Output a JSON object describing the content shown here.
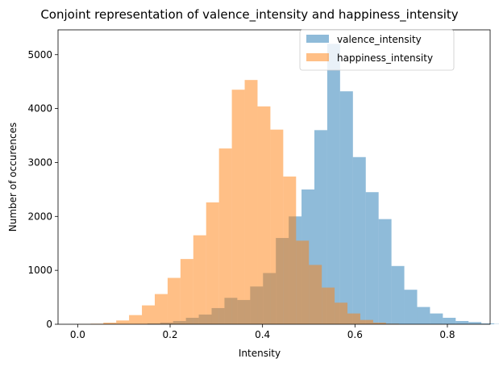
{
  "chart_data": {
    "type": "bar",
    "title": "Conjoint representation of valence_intensity and happiness_intensity",
    "xlabel": "Intensity",
    "ylabel": "Number of occurences",
    "xlim": [
      -0.0425,
      0.8925
    ],
    "ylim": [
      0,
      5460
    ],
    "xticks": [
      0.0,
      0.2,
      0.4,
      0.6,
      0.8
    ],
    "xtick_labels": [
      "0.0",
      "0.2",
      "0.4",
      "0.6",
      "0.8"
    ],
    "yticks": [
      0,
      1000,
      2000,
      3000,
      4000,
      5000
    ],
    "ytick_labels": [
      "0",
      "1000",
      "2000",
      "3000",
      "4000",
      "5000"
    ],
    "grid": false,
    "legend_position": "top-right",
    "bin_width": 0.0278,
    "series": [
      {
        "name": "valence_intensity",
        "color": "#1f77b4",
        "alpha": 0.5,
        "bin_start": 0.123,
        "values": [
          5,
          15,
          30,
          60,
          120,
          180,
          300,
          490,
          450,
          700,
          950,
          1600,
          2000,
          2500,
          3600,
          5200,
          4320,
          3100,
          2450,
          1950,
          1080,
          640,
          320,
          200,
          120,
          60,
          40,
          15,
          5,
          2
        ]
      },
      {
        "name": "happiness_intensity",
        "color": "#ff7f0e",
        "alpha": 0.5,
        "bin_start": 0.0,
        "values": [
          3,
          10,
          30,
          70,
          170,
          350,
          560,
          860,
          1210,
          1650,
          2260,
          3260,
          4350,
          4530,
          4040,
          3610,
          2740,
          1550,
          1100,
          680,
          400,
          200,
          80,
          30,
          10
        ]
      }
    ]
  }
}
